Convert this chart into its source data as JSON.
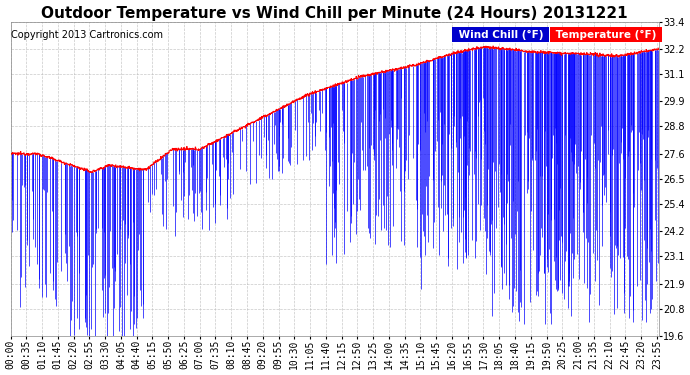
{
  "title": "Outdoor Temperature vs Wind Chill per Minute (24 Hours) 20131221",
  "copyright": "Copyright 2013 Cartronics.com",
  "background_color": "#ffffff",
  "plot_bg_color": "#ffffff",
  "grid_color": "#bbbbbb",
  "temp_color": "#ff0000",
  "wind_chill_color": "#0000ff",
  "yticks": [
    19.6,
    20.8,
    21.9,
    23.1,
    24.2,
    25.4,
    26.5,
    27.6,
    28.8,
    29.9,
    31.1,
    32.2,
    33.4
  ],
  "ymin": 19.6,
  "ymax": 33.4,
  "title_fontsize": 11,
  "copyright_fontsize": 7,
  "legend_fontsize": 7.5,
  "tick_fontsize": 7,
  "xtick_step": 35
}
